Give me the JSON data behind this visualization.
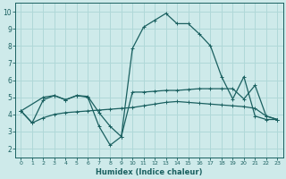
{
  "bg_color": "#ceeaea",
  "grid_color": "#b0d8d8",
  "line_color": "#1a6060",
  "xlabel": "Humidex (Indice chaleur)",
  "xlim": [
    -0.5,
    23.5
  ],
  "ylim": [
    1.5,
    10.5
  ],
  "xticks": [
    0,
    1,
    2,
    3,
    4,
    5,
    6,
    7,
    8,
    9,
    10,
    11,
    12,
    13,
    14,
    15,
    16,
    17,
    18,
    19,
    20,
    21,
    22,
    23
  ],
  "yticks": [
    2,
    3,
    4,
    5,
    6,
    7,
    8,
    9,
    10
  ],
  "line1_x": [
    0,
    1,
    2,
    3,
    4,
    5,
    6,
    7,
    8,
    9,
    10,
    11,
    12,
    13,
    14,
    15,
    16,
    17,
    18,
    19,
    20,
    21,
    22,
    23
  ],
  "line1_y": [
    4.2,
    3.5,
    3.8,
    4.0,
    4.1,
    4.15,
    4.2,
    4.25,
    4.3,
    4.35,
    4.4,
    4.5,
    4.6,
    4.7,
    4.75,
    4.7,
    4.65,
    4.6,
    4.55,
    4.5,
    4.45,
    4.35,
    3.9,
    3.7
  ],
  "line2_x": [
    0,
    2,
    3,
    4,
    5,
    6,
    7,
    8,
    9,
    10,
    11,
    12,
    13,
    14,
    15,
    16,
    17,
    18,
    19,
    20,
    21,
    22,
    23
  ],
  "line2_y": [
    4.2,
    5.0,
    5.1,
    4.85,
    5.1,
    5.05,
    4.1,
    3.3,
    2.7,
    5.3,
    5.3,
    5.35,
    5.4,
    5.4,
    5.45,
    5.5,
    5.5,
    5.5,
    5.5,
    4.9,
    5.7,
    3.9,
    3.7
  ],
  "line3_x": [
    0,
    1,
    2,
    3,
    4,
    5,
    6,
    7,
    8,
    9,
    10,
    11,
    12,
    13,
    14,
    15,
    16,
    17,
    18,
    19,
    20,
    21,
    22,
    23
  ],
  "line3_y": [
    4.2,
    3.5,
    4.85,
    5.1,
    4.85,
    5.1,
    5.0,
    3.3,
    2.2,
    2.7,
    7.85,
    9.1,
    9.5,
    9.9,
    9.3,
    9.3,
    8.7,
    8.0,
    6.2,
    4.9,
    6.2,
    3.9,
    3.7,
    3.7
  ]
}
